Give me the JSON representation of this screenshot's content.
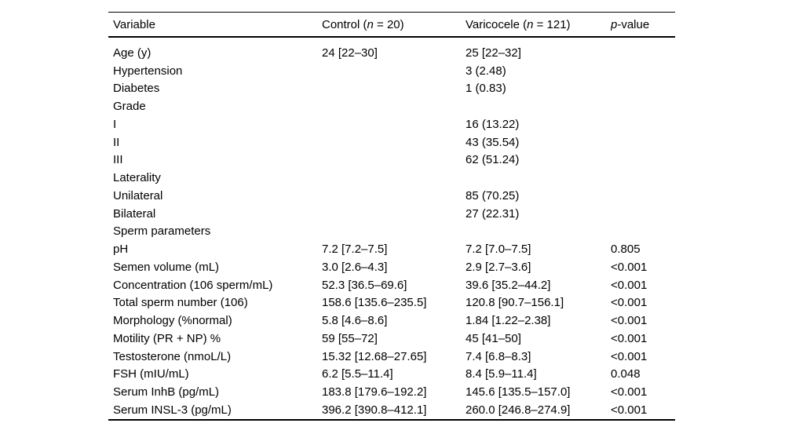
{
  "colors": {
    "background": "#ffffff",
    "text": "#000000",
    "rule": "#000000"
  },
  "table": {
    "header": [
      {
        "pre": "Variable",
        "italic": "",
        "post": ""
      },
      {
        "pre": "Control (",
        "italic": "n",
        "post": " = 20)"
      },
      {
        "pre": "Varicocele (",
        "italic": "n",
        "post": " = 121)"
      },
      {
        "pre": "",
        "italic": "p",
        "post": "-value"
      }
    ],
    "rows": [
      [
        "Age (y)",
        "24 [22–30]",
        "25 [22–32]",
        ""
      ],
      [
        "Hypertension",
        "",
        "3 (2.48)",
        ""
      ],
      [
        "Diabetes",
        "",
        "1 (0.83)",
        ""
      ],
      [
        "Grade",
        "",
        "",
        ""
      ],
      [
        "I",
        "",
        "16 (13.22)",
        ""
      ],
      [
        "II",
        "",
        "43 (35.54)",
        ""
      ],
      [
        "III",
        "",
        "62 (51.24)",
        ""
      ],
      [
        "Laterality",
        "",
        "",
        ""
      ],
      [
        "Unilateral",
        "",
        "85 (70.25)",
        ""
      ],
      [
        "Bilateral",
        "",
        "27 (22.31)",
        ""
      ],
      [
        "Sperm parameters",
        "",
        "",
        ""
      ],
      [
        "pH",
        "7.2 [7.2–7.5]",
        "7.2 [7.0–7.5]",
        "0.805"
      ],
      [
        "Semen volume (mL)",
        "3.0 [2.6–4.3]",
        "2.9 [2.7–3.6]",
        "<0.001"
      ],
      [
        "Concentration (106 sperm/mL)",
        "52.3 [36.5–69.6]",
        "39.6 [35.2–44.2]",
        "<0.001"
      ],
      [
        "Total sperm number (106)",
        "158.6 [135.6–235.5]",
        "120.8 [90.7–156.1]",
        "<0.001"
      ],
      [
        "Morphology (%normal)",
        "5.8 [4.6–8.6]",
        "1.84 [1.22–2.38]",
        "<0.001"
      ],
      [
        "Motility (PR + NP) %",
        "59 [55–72]",
        "45 [41–50]",
        "<0.001"
      ],
      [
        "Testosterone (nmoL/L)",
        "15.32 [12.68–27.65]",
        "7.4 [6.8–8.3]",
        "<0.001"
      ],
      [
        "FSH (mIU/mL)",
        "6.2 [5.5–11.4]",
        "8.4 [5.9–11.4]",
        "0.048"
      ],
      [
        "Serum InhB (pg/mL)",
        "183.8 [179.6–192.2]",
        "145.6 [135.5–157.0]",
        "<0.001"
      ],
      [
        "Serum INSL-3 (pg/mL)",
        "396.2 [390.8–412.1]",
        "260.0 [246.8–274.9]",
        "<0.001"
      ]
    ]
  }
}
